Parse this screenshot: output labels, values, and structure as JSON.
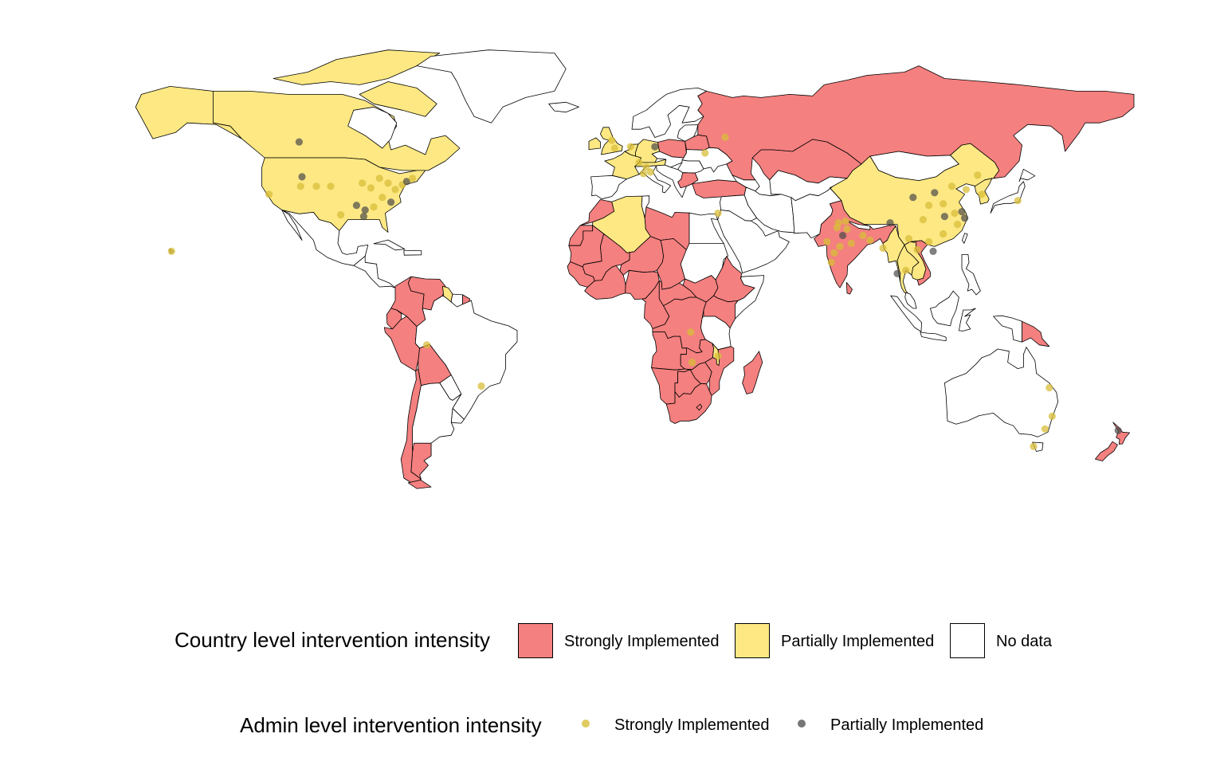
{
  "colors": {
    "strong": "#F4807F",
    "partial": "#FDE883",
    "no_data": "#FFFFFF",
    "dot_strong": "#D8BE38",
    "dot_partial": "#4A4A4A",
    "border": "#000000"
  },
  "country_legend": {
    "title": "Country level intervention intensity",
    "items": [
      {
        "label": "Strongly Implemented",
        "color": "#F4807F"
      },
      {
        "label": "Partially Implemented",
        "color": "#FDE883"
      },
      {
        "label": "No data",
        "color": "#FFFFFF"
      }
    ]
  },
  "admin_legend": {
    "title": "Admin level intervention intensity",
    "items": [
      {
        "label": "Strongly Implemented",
        "color": "#D8BE38"
      },
      {
        "label": "Partially Implemented",
        "color": "#4A4A4A"
      }
    ]
  },
  "map_data": {
    "projection": "equirectangular world map",
    "country_categories": {
      "strong": [
        "Russia",
        "India",
        "Peru",
        "Chile",
        "Venezuela",
        "Colombia",
        "Bolivia",
        "Argentina (south)",
        "Ecuador",
        "Morocco",
        "Western Sahara",
        "Libya",
        "Niger",
        "Chad",
        "Mali",
        "Mauritania",
        "Senegal",
        "Nigeria",
        "Sudan",
        "Ethiopia",
        "Kenya",
        "Somalia",
        "DR Congo",
        "Angola",
        "Zambia",
        "Namibia",
        "Botswana",
        "South Africa",
        "Madagascar",
        "Mozambique",
        "Zimbabwe",
        "Kazakhstan",
        "Iran",
        "Mongolia",
        "Turkey",
        "Poland",
        "Ukraine",
        "Belarus",
        "Vietnam",
        "Papua New Guinea",
        "New Zealand",
        "Tanzania",
        "Cameroon",
        "Gabon"
      ],
      "partial": [
        "Canada",
        "United States",
        "Greenland (partial)",
        "Alaska",
        "China",
        "Algeria",
        "France",
        "United Kingdom",
        "Thailand",
        "Guyana",
        "Hawaii",
        "Malawi",
        "Korea",
        "Myanmar",
        "Laos"
      ],
      "no_data": [
        "Brazil",
        "Australia",
        "Mexico",
        "Saudi Arabia",
        "Egypt",
        "Indonesia",
        "Japan",
        "Afghanistan",
        "Pakistan",
        "Spain",
        "Scandinavia",
        "Central America"
      ]
    },
    "admin_points": [
      {
        "lon": -111.0,
        "lat": 54.0,
        "level": "partial"
      },
      {
        "lon": -110.0,
        "lat": 43.0,
        "level": "partial"
      },
      {
        "lon": -121.5,
        "lat": 37.5,
        "level": "strong"
      },
      {
        "lon": -110.5,
        "lat": 40.0,
        "level": "strong"
      },
      {
        "lon": -105.0,
        "lat": 40.0,
        "level": "strong"
      },
      {
        "lon": -100.0,
        "lat": 40.0,
        "level": "strong"
      },
      {
        "lon": -89.0,
        "lat": 41.0,
        "level": "strong"
      },
      {
        "lon": -86.0,
        "lat": 39.5,
        "level": "strong"
      },
      {
        "lon": -83.0,
        "lat": 42.5,
        "level": "strong"
      },
      {
        "lon": -80.0,
        "lat": 41.0,
        "level": "strong"
      },
      {
        "lon": -77.5,
        "lat": 39.0,
        "level": "strong"
      },
      {
        "lon": -75.0,
        "lat": 40.5,
        "level": "strong"
      },
      {
        "lon": -73.5,
        "lat": 41.5,
        "level": "partial"
      },
      {
        "lon": -71.5,
        "lat": 42.5,
        "level": "strong"
      },
      {
        "lon": -79.0,
        "lat": 35.0,
        "level": "partial"
      },
      {
        "lon": -91.0,
        "lat": 34.0,
        "level": "partial"
      },
      {
        "lon": -88.0,
        "lat": 32.5,
        "level": "partial"
      },
      {
        "lon": -85.0,
        "lat": 33.5,
        "level": "strong"
      },
      {
        "lon": -82.0,
        "lat": 36.5,
        "level": "strong"
      },
      {
        "lon": -96.5,
        "lat": 31.0,
        "level": "strong"
      },
      {
        "lon": -88.5,
        "lat": 30.5,
        "level": "partial"
      },
      {
        "lon": -155.5,
        "lat": 19.5,
        "level": "strong"
      },
      {
        "lon": -2.0,
        "lat": 54.5,
        "level": "strong"
      },
      {
        "lon": -1.0,
        "lat": 52.0,
        "level": "strong"
      },
      {
        "lon": 4.5,
        "lat": 52.5,
        "level": "strong"
      },
      {
        "lon": 13.0,
        "lat": 52.5,
        "level": "partial"
      },
      {
        "lon": 7.5,
        "lat": 47.5,
        "level": "strong"
      },
      {
        "lon": 10.0,
        "lat": 46.0,
        "level": "strong"
      },
      {
        "lon": 9.0,
        "lat": 44.0,
        "level": "strong"
      },
      {
        "lon": 11.5,
        "lat": 44.5,
        "level": "strong"
      },
      {
        "lon": 30.5,
        "lat": 50.5,
        "level": "strong"
      },
      {
        "lon": 37.5,
        "lat": 55.5,
        "level": "strong"
      },
      {
        "lon": 35.0,
        "lat": 31.5,
        "level": "strong"
      },
      {
        "lon": 77.0,
        "lat": 28.5,
        "level": "strong"
      },
      {
        "lon": 76.5,
        "lat": 27.0,
        "level": "strong"
      },
      {
        "lon": 79.5,
        "lat": 29.0,
        "level": "strong"
      },
      {
        "lon": 80.0,
        "lat": 26.5,
        "level": "strong"
      },
      {
        "lon": 78.5,
        "lat": 24.5,
        "level": "partial"
      },
      {
        "lon": 73.0,
        "lat": 22.5,
        "level": "strong"
      },
      {
        "lon": 75.5,
        "lat": 19.0,
        "level": "strong"
      },
      {
        "lon": 77.5,
        "lat": 21.0,
        "level": "strong"
      },
      {
        "lon": 81.5,
        "lat": 22.0,
        "level": "strong"
      },
      {
        "lon": 85.5,
        "lat": 24.5,
        "level": "strong"
      },
      {
        "lon": 88.0,
        "lat": 23.0,
        "level": "strong"
      },
      {
        "lon": 74.5,
        "lat": 16.0,
        "level": "strong"
      },
      {
        "lon": 97.5,
        "lat": 12.5,
        "level": "partial"
      },
      {
        "lon": 92.5,
        "lat": 20.5,
        "level": "strong"
      },
      {
        "lon": 101.5,
        "lat": 23.5,
        "level": "strong"
      },
      {
        "lon": 104.5,
        "lat": 20.0,
        "level": "strong"
      },
      {
        "lon": 100.5,
        "lat": 13.5,
        "level": "strong"
      },
      {
        "lon": 95.0,
        "lat": 28.5,
        "level": "partial"
      },
      {
        "lon": 103.0,
        "lat": 36.5,
        "level": "partial"
      },
      {
        "lon": 110.5,
        "lat": 38.0,
        "level": "partial"
      },
      {
        "lon": 116.5,
        "lat": 40.0,
        "level": "strong"
      },
      {
        "lon": 121.5,
        "lat": 39.0,
        "level": "strong"
      },
      {
        "lon": 125.5,
        "lat": 43.5,
        "level": "strong"
      },
      {
        "lon": 108.5,
        "lat": 34.0,
        "level": "strong"
      },
      {
        "lon": 113.5,
        "lat": 34.5,
        "level": "strong"
      },
      {
        "lon": 117.5,
        "lat": 31.5,
        "level": "strong"
      },
      {
        "lon": 114.0,
        "lat": 30.5,
        "level": "partial"
      },
      {
        "lon": 120.0,
        "lat": 32.0,
        "level": "partial"
      },
      {
        "lon": 121.0,
        "lat": 30.0,
        "level": "partial"
      },
      {
        "lon": 118.5,
        "lat": 28.0,
        "level": "strong"
      },
      {
        "lon": 113.5,
        "lat": 25.0,
        "level": "strong"
      },
      {
        "lon": 108.5,
        "lat": 22.5,
        "level": "strong"
      },
      {
        "lon": 106.5,
        "lat": 29.5,
        "level": "strong"
      },
      {
        "lon": 110.0,
        "lat": 19.5,
        "level": "partial"
      },
      {
        "lon": 127.0,
        "lat": 37.5,
        "level": "strong"
      },
      {
        "lon": 139.5,
        "lat": 35.5,
        "level": "strong"
      },
      {
        "lon": -66.5,
        "lat": -10.0,
        "level": "strong"
      },
      {
        "lon": -47.5,
        "lat": -23.0,
        "level": "strong"
      },
      {
        "lon": 25.5,
        "lat": -6.0,
        "level": "strong"
      },
      {
        "lon": 26.0,
        "lat": -15.5,
        "level": "strong"
      },
      {
        "lon": 35.0,
        "lat": -13.5,
        "level": "strong"
      },
      {
        "lon": 150.5,
        "lat": -23.5,
        "level": "strong"
      },
      {
        "lon": 151.5,
        "lat": -32.5,
        "level": "strong"
      },
      {
        "lon": 149.0,
        "lat": -36.5,
        "level": "strong"
      },
      {
        "lon": 145.0,
        "lat": -42.0,
        "level": "strong"
      },
      {
        "lon": 174.5,
        "lat": -37.0,
        "level": "partial"
      }
    ]
  }
}
